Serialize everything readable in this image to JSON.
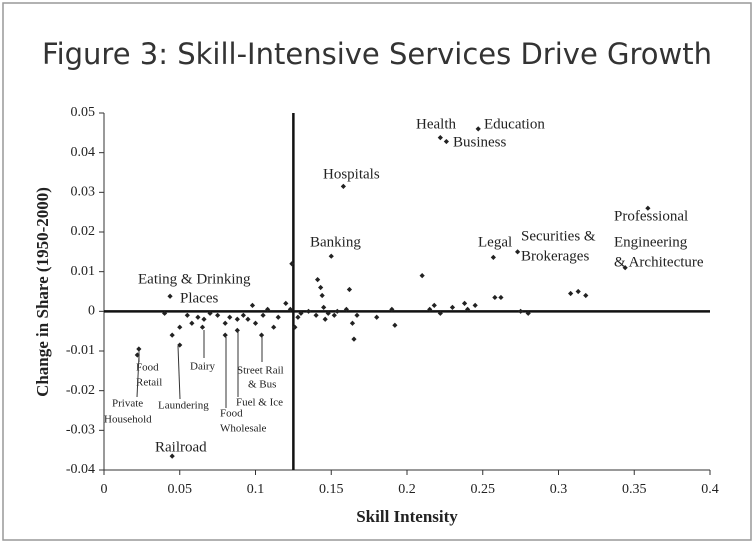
{
  "chart_data": {
    "type": "scatter",
    "title": "Figure 3: Skill-Intensive Services Drive Growth",
    "xlabel": "Skill Intensity",
    "ylabel": "Change in Share (1950-2000)",
    "color": "#222222",
    "xlim": [
      0,
      0.4
    ],
    "ylim": [
      -0.04,
      0.05
    ],
    "xticks": [
      0,
      0.05,
      0.1,
      0.15,
      0.2,
      0.25,
      0.3,
      0.35,
      0.4
    ],
    "yticks": [
      0.05,
      0.04,
      0.03,
      0.02,
      0.01,
      0,
      -0.01,
      -0.02,
      -0.03,
      -0.04
    ],
    "vline": 0.125,
    "hline": 0,
    "x": [
      0.222,
      0.226,
      0.247,
      0.158,
      0.359,
      0.344,
      0.273,
      0.257,
      0.15,
      0.0436,
      0.023,
      0.022,
      0.05,
      0.065,
      0.08,
      0.088,
      0.104,
      0.045,
      0.04,
      0.045,
      0.05,
      0.055,
      0.058,
      0.062,
      0.066,
      0.07,
      0.075,
      0.08,
      0.083,
      0.088,
      0.092,
      0.095,
      0.098,
      0.1,
      0.105,
      0.108,
      0.112,
      0.115,
      0.12,
      0.123,
      0.124,
      0.126,
      0.128,
      0.13,
      0.135,
      0.14,
      0.141,
      0.143,
      0.144,
      0.145,
      0.146,
      0.148,
      0.152,
      0.154,
      0.16,
      0.162,
      0.164,
      0.165,
      0.167,
      0.18,
      0.19,
      0.192,
      0.21,
      0.215,
      0.218,
      0.222,
      0.23,
      0.238,
      0.24,
      0.245,
      0.258,
      0.262,
      0.275,
      0.28,
      0.308,
      0.313,
      0.318
    ],
    "values": [
      0.0438,
      0.0428,
      0.046,
      0.0315,
      0.026,
      0.011,
      0.015,
      0.0136,
      0.0139,
      0.0038,
      -0.0095,
      -0.011,
      -0.0085,
      -0.004,
      -0.006,
      -0.0048,
      -0.006,
      -0.0365,
      -0.0005,
      -0.006,
      -0.004,
      -0.001,
      -0.003,
      -0.0015,
      -0.002,
      -0.0005,
      -0.001,
      -0.003,
      -0.0015,
      -0.002,
      -0.001,
      -0.002,
      0.0015,
      -0.003,
      -0.001,
      0.0005,
      -0.004,
      -0.0015,
      0.002,
      0.0005,
      0.012,
      -0.004,
      -0.0015,
      -0.0005,
      0,
      -0.001,
      0.008,
      0.006,
      0.004,
      0.001,
      -0.002,
      -0.0005,
      -0.001,
      0,
      0.0005,
      0.0055,
      -0.003,
      -0.007,
      -0.001,
      -0.0015,
      0.0005,
      -0.0035,
      0.009,
      0.0005,
      0.0015,
      -0.0005,
      0.001,
      0.002,
      0.0005,
      0.0015,
      0.0035,
      0.0035,
      0,
      -0.0005,
      0.0045,
      0.005,
      0.004
    ],
    "annotations": [
      "Health",
      "Education",
      "Business",
      "Hospitals",
      "Banking",
      "Legal",
      "Securities &",
      "Brokerages",
      "Professional",
      "Engineering",
      "& Architecture",
      "Eating & Drinking",
      "Places",
      "Food",
      "Retail",
      "Private",
      "Household",
      "Laundering",
      "Dairy",
      "Street Rail",
      "& Bus",
      "Fuel & Ice",
      "Food",
      "Wholesale",
      "Railroad"
    ]
  }
}
